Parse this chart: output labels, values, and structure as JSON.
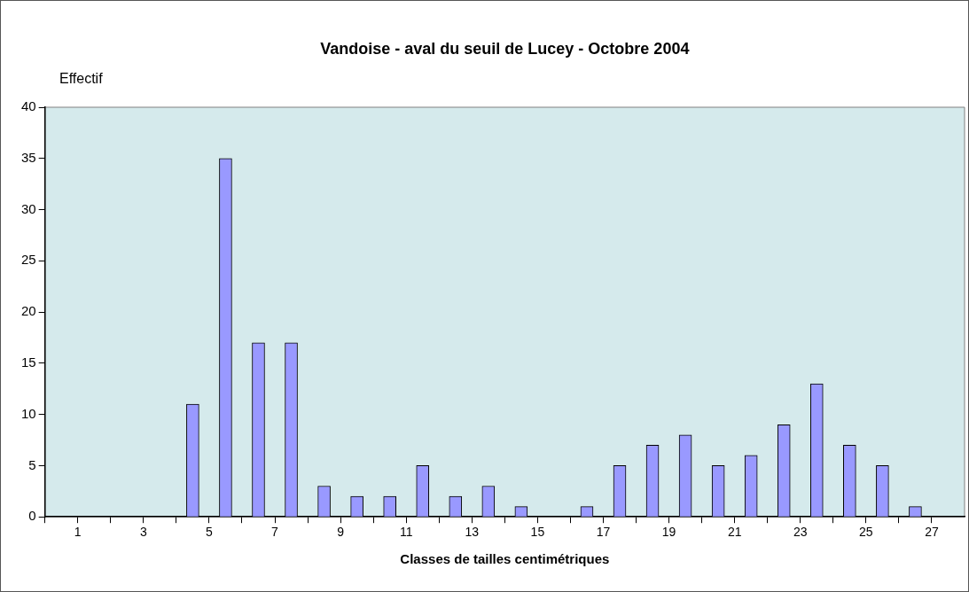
{
  "chart_data": {
    "type": "histogram",
    "title": "Vandoise - aval du seuil de Lucey - Octobre 2004",
    "xlabel": "Classes de tailles centimétriques",
    "ylabel": "Effectif",
    "bins": [
      0,
      1,
      2,
      3,
      4,
      5,
      6,
      7,
      8,
      9,
      10,
      11,
      12,
      13,
      14,
      15,
      16,
      17,
      18,
      19,
      20,
      21,
      22,
      23,
      24,
      25,
      26,
      27
    ],
    "values": [
      0,
      0,
      0,
      0,
      11,
      35,
      17,
      17,
      3,
      2,
      2,
      5,
      2,
      3,
      1,
      0,
      1,
      5,
      7,
      8,
      5,
      6,
      9,
      13,
      7,
      5,
      1
    ],
    "color": "#9999ff",
    "xlim": [
      0,
      28
    ],
    "xticks": [
      {
        "value": 0,
        "label": null
      },
      1,
      {
        "value": 2,
        "label": null
      },
      3,
      {
        "value": 4,
        "label": null
      },
      5,
      {
        "value": 6,
        "label": null
      },
      7,
      {
        "value": 8,
        "label": null
      },
      9,
      {
        "value": 10,
        "label": null
      },
      11,
      {
        "value": 12,
        "label": null
      },
      13,
      {
        "value": 14,
        "label": null
      },
      15,
      {
        "value": 16,
        "label": null
      },
      17,
      {
        "value": 18,
        "label": null
      },
      19,
      {
        "value": 20,
        "label": null
      },
      21,
      {
        "value": 22,
        "label": null
      },
      23,
      {
        "value": 24,
        "label": null
      },
      25,
      {
        "value": 26,
        "label": null
      },
      27
    ],
    "ylim": [
      0,
      40
    ],
    "yticks": [
      0,
      5,
      10,
      15,
      20,
      25,
      30,
      35,
      40
    ],
    "grid": false,
    "legend": false
  }
}
